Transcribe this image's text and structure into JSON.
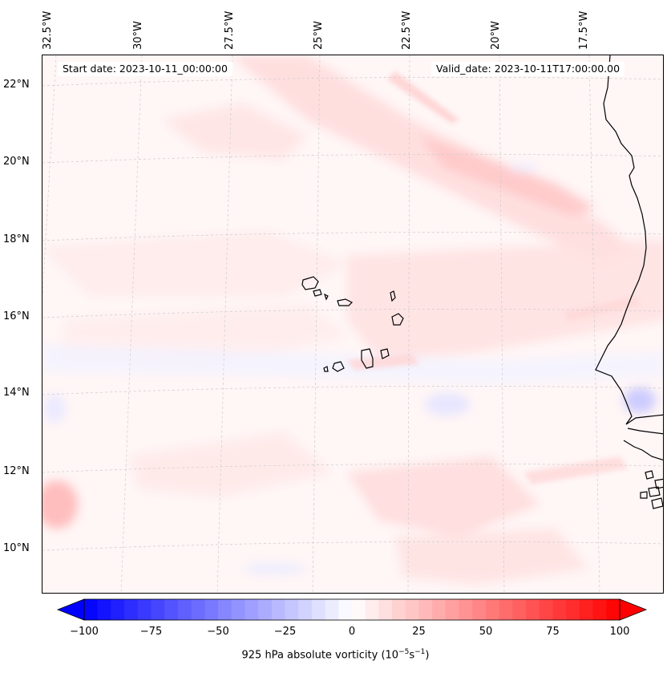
{
  "map": {
    "start_date": "Start date: 2023-10-11_00:00:00",
    "valid_date": "Valid_date: 2023-10-11T17:00:00.00",
    "lon_labels": [
      "32.5°W",
      "30°W",
      "27.5°W",
      "25°W",
      "22.5°W",
      "20°W",
      "17.5°W"
    ],
    "lat_labels": [
      "22°N",
      "20°N",
      "18°N",
      "16°N",
      "14°N",
      "12°N",
      "10°N"
    ],
    "field": "925 hPa absolute vorticity",
    "ocean_tint": "#fff6f6",
    "coast_color": "#000000"
  },
  "colorbar": {
    "label_text": "925 hPa absolute vorticity",
    "label_units_pre": "(10",
    "label_units_exp1": "−5",
    "label_units_mid": "s",
    "label_units_exp2": "−1",
    "label_units_post": ")",
    "min": -100,
    "max": 100,
    "step": 5,
    "ticks": [
      "−100",
      "−75",
      "−50",
      "−25",
      "0",
      "25",
      "50",
      "75",
      "100"
    ],
    "extend": "both",
    "colormap": "bwr",
    "low_color": "#0000ff",
    "mid_color": "#ffffff",
    "high_color": "#ff0000"
  }
}
